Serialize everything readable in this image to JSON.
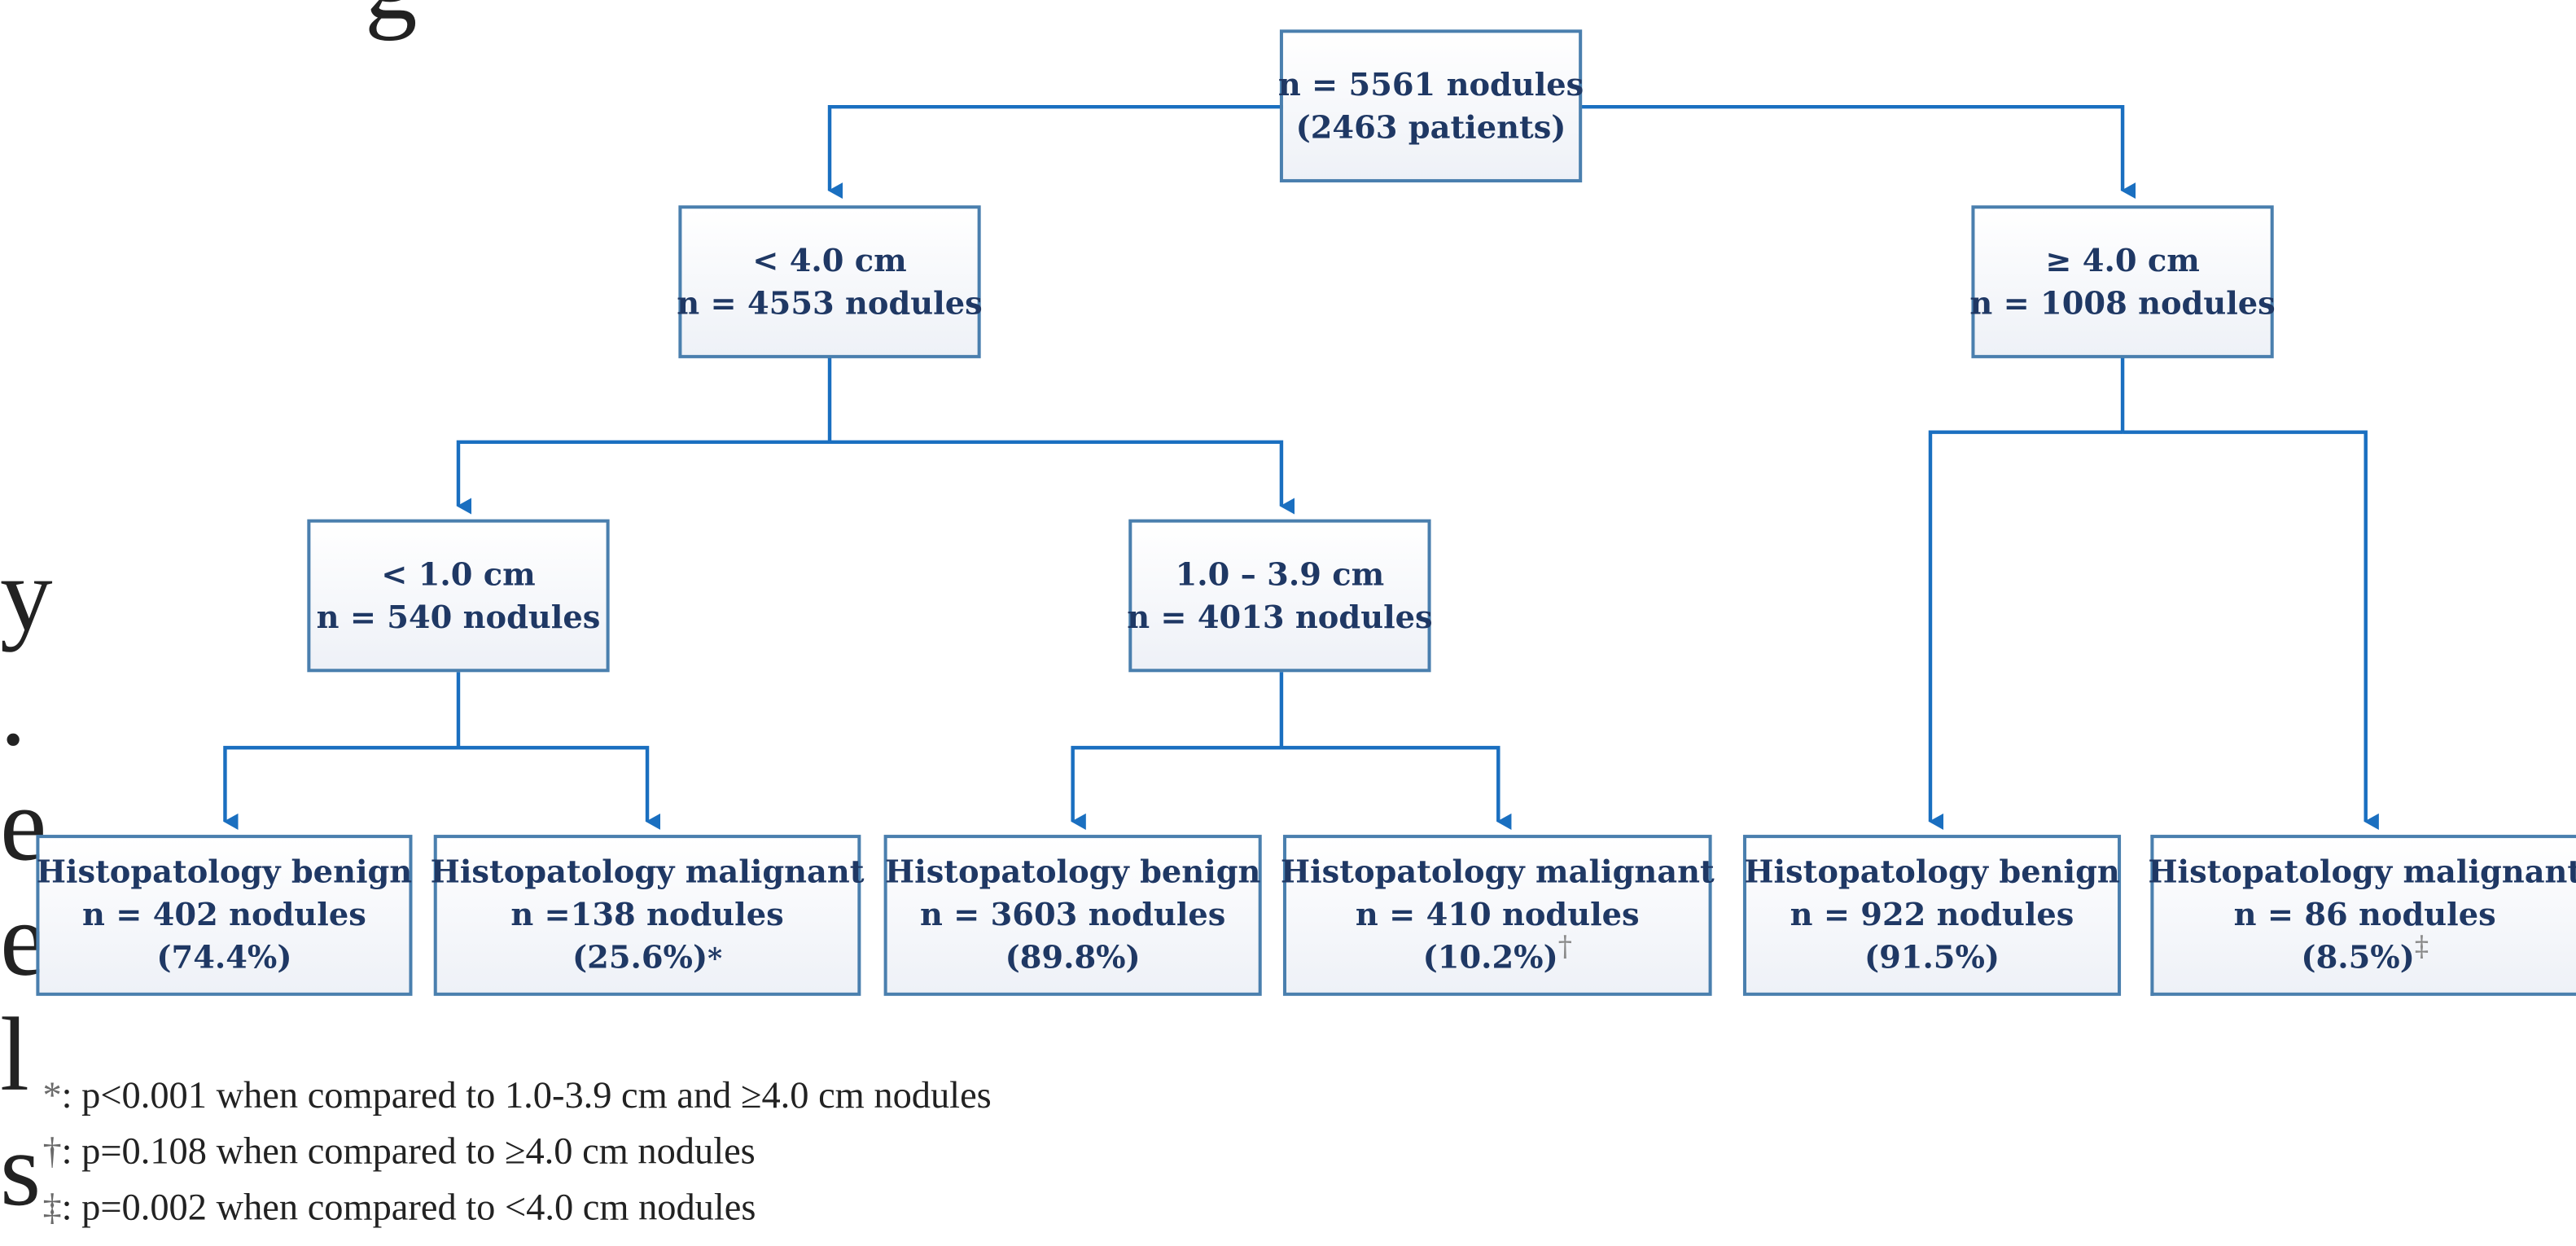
{
  "colors": {
    "connector": "#1a6fc0",
    "box_border": "#4a7fae",
    "box_text": "#1f3864"
  },
  "root": {
    "line1": "n = 5561 nodules",
    "line2": "(2463 patients)"
  },
  "lt4": {
    "line1": "< 4.0 cm",
    "line2": "n = 4553 nodules"
  },
  "ge4": {
    "line1": "≥  4.0 cm",
    "line2": "n = 1008 nodules"
  },
  "lt1": {
    "line1": "< 1.0 cm",
    "line2": "n = 540 nodules"
  },
  "mid": {
    "line1": "1.0 – 3.9 cm",
    "line2": "n = 4013 nodules"
  },
  "leaves": [
    {
      "line1": "Histopatology benign",
      "line2": "n = 402 nodules",
      "line3": "(74.4%)",
      "mark": ""
    },
    {
      "line1": "Histopatology malignant",
      "line2": "n =138 nodules",
      "line3": "(25.6%)",
      "mark": "*"
    },
    {
      "line1": "Histopatology benign",
      "line2": "n = 3603 nodules",
      "line3": "(89.8%)",
      "mark": ""
    },
    {
      "line1": "Histopatology malignant",
      "line2": "n = 410 nodules",
      "line3": "(10.2%)",
      "mark": "†"
    },
    {
      "line1": "Histopatology benign",
      "line2": "n = 922 nodules",
      "line3": "(91.5%)",
      "mark": ""
    },
    {
      "line1": "Histopatology malignant",
      "line2": "n = 86 nodules",
      "line3": "(8.5%)",
      "mark": "‡"
    }
  ],
  "footnotes": [
    {
      "mark": "*",
      "text": ": p<0.001 when compared to 1.0-3.9 cm and ≥4.0 cm nodules"
    },
    {
      "mark": "†",
      "text": ": p=0.108 when compared to ≥4.0 cm nodules"
    },
    {
      "mark": "‡",
      "text": ": p=0.002 when compared to <4.0 cm nodules"
    }
  ],
  "cut_text": {
    "top": "g",
    "left": [
      "y",
      ".",
      "e",
      "e",
      "l",
      "s"
    ]
  }
}
